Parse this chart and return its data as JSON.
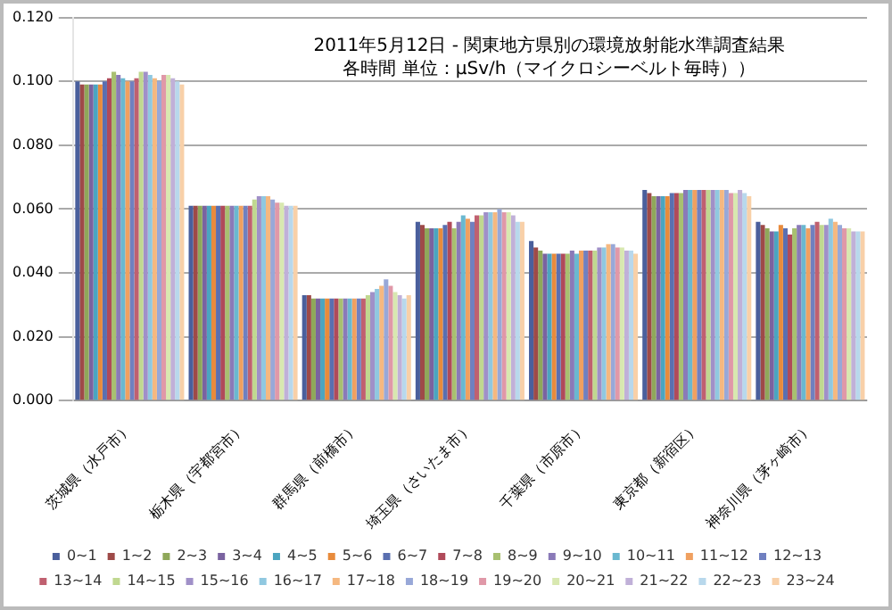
{
  "chart_data": {
    "type": "bar",
    "title": "2011年5月12日 - 関東地方県別の環境放射能水準調査結果",
    "subtitle": "各時間 単位：µSv/h（マイクロシーベルト毎時））",
    "categories": [
      "茨城県（水戸市）",
      "栃木県（宇都宮市）",
      "群馬県（前橋市）",
      "埼玉県（さいたま市）",
      "千葉県（市原市）",
      "東京都（新宿区）",
      "神奈川県（茅ヶ崎市）"
    ],
    "ylim": [
      0,
      0.12
    ],
    "yticks": [
      {
        "value": 0,
        "label": "0.000"
      },
      {
        "value": 0.02,
        "label": "0.020"
      },
      {
        "value": 0.04,
        "label": "0.040"
      },
      {
        "value": 0.06,
        "label": "0.060"
      },
      {
        "value": 0.08,
        "label": "0.080"
      },
      {
        "value": 0.1,
        "label": "0.100"
      },
      {
        "value": 0.12,
        "label": "0.120"
      }
    ],
    "grid": "y",
    "legend": "bottom",
    "series": [
      {
        "name": "0~1",
        "color": "#4a5f9c",
        "values": [
          0.1,
          0.061,
          0.033,
          0.056,
          0.05,
          0.066,
          0.056
        ]
      },
      {
        "name": "1~2",
        "color": "#9e4a48",
        "values": [
          0.099,
          0.061,
          0.033,
          0.055,
          0.048,
          0.065,
          0.055
        ]
      },
      {
        "name": "2~3",
        "color": "#8fa85a",
        "values": [
          0.099,
          0.061,
          0.032,
          0.054,
          0.047,
          0.064,
          0.054
        ]
      },
      {
        "name": "3~4",
        "color": "#7a63a0",
        "values": [
          0.099,
          0.061,
          0.032,
          0.054,
          0.046,
          0.064,
          0.053
        ]
      },
      {
        "name": "4~5",
        "color": "#4ba5c0",
        "values": [
          0.099,
          0.061,
          0.032,
          0.054,
          0.046,
          0.064,
          0.053
        ]
      },
      {
        "name": "5~6",
        "color": "#e88b3c",
        "values": [
          0.099,
          0.061,
          0.032,
          0.054,
          0.046,
          0.064,
          0.055
        ]
      },
      {
        "name": "6~7",
        "color": "#5a6fb0",
        "values": [
          0.1,
          0.061,
          0.032,
          0.055,
          0.046,
          0.065,
          0.054
        ]
      },
      {
        "name": "7~8",
        "color": "#b04a5a",
        "values": [
          0.101,
          0.061,
          0.032,
          0.056,
          0.046,
          0.065,
          0.052
        ]
      },
      {
        "name": "8~9",
        "color": "#a8c070",
        "values": [
          0.103,
          0.061,
          0.032,
          0.054,
          0.046,
          0.065,
          0.054
        ]
      },
      {
        "name": "9~10",
        "color": "#8a7ab8",
        "values": [
          0.102,
          0.061,
          0.032,
          0.056,
          0.047,
          0.066,
          0.055
        ]
      },
      {
        "name": "10~11",
        "color": "#6ab8d0",
        "values": [
          0.101,
          0.061,
          0.032,
          0.058,
          0.046,
          0.066,
          0.055
        ]
      },
      {
        "name": "11~12",
        "color": "#f0a060",
        "values": [
          0.1,
          0.061,
          0.032,
          0.057,
          0.047,
          0.066,
          0.054
        ]
      },
      {
        "name": "12~13",
        "color": "#7080c0",
        "values": [
          0.1,
          0.061,
          0.032,
          0.056,
          0.047,
          0.066,
          0.055
        ]
      },
      {
        "name": "13~14",
        "color": "#c06070",
        "values": [
          0.101,
          0.061,
          0.032,
          0.058,
          0.047,
          0.066,
          0.056
        ]
      },
      {
        "name": "14~15",
        "color": "#c0d890",
        "values": [
          0.103,
          0.063,
          0.033,
          0.058,
          0.047,
          0.066,
          0.055
        ]
      },
      {
        "name": "15~16",
        "color": "#a090c8",
        "values": [
          0.103,
          0.064,
          0.034,
          0.059,
          0.048,
          0.066,
          0.055
        ]
      },
      {
        "name": "16~17",
        "color": "#90c8e0",
        "values": [
          0.102,
          0.064,
          0.035,
          0.059,
          0.048,
          0.066,
          0.057
        ]
      },
      {
        "name": "17~18",
        "color": "#f5b880",
        "values": [
          0.101,
          0.064,
          0.036,
          0.059,
          0.049,
          0.066,
          0.056
        ]
      },
      {
        "name": "18~19",
        "color": "#98a8d8",
        "values": [
          0.1,
          0.063,
          0.038,
          0.06,
          0.049,
          0.066,
          0.055
        ]
      },
      {
        "name": "19~20",
        "color": "#e098a8",
        "values": [
          0.102,
          0.062,
          0.036,
          0.059,
          0.048,
          0.065,
          0.054
        ]
      },
      {
        "name": "20~21",
        "color": "#d8e8b0",
        "values": [
          0.102,
          0.062,
          0.034,
          0.059,
          0.048,
          0.065,
          0.054
        ]
      },
      {
        "name": "21~22",
        "color": "#c0b0d8",
        "values": [
          0.101,
          0.061,
          0.033,
          0.058,
          0.047,
          0.066,
          0.053
        ]
      },
      {
        "name": "22~23",
        "color": "#b8d8ec",
        "values": [
          0.1,
          0.061,
          0.032,
          0.056,
          0.047,
          0.065,
          0.053
        ]
      },
      {
        "name": "23~24",
        "color": "#f8d0a8",
        "values": [
          0.099,
          0.061,
          0.033,
          0.056,
          0.046,
          0.064,
          0.053
        ]
      }
    ]
  }
}
